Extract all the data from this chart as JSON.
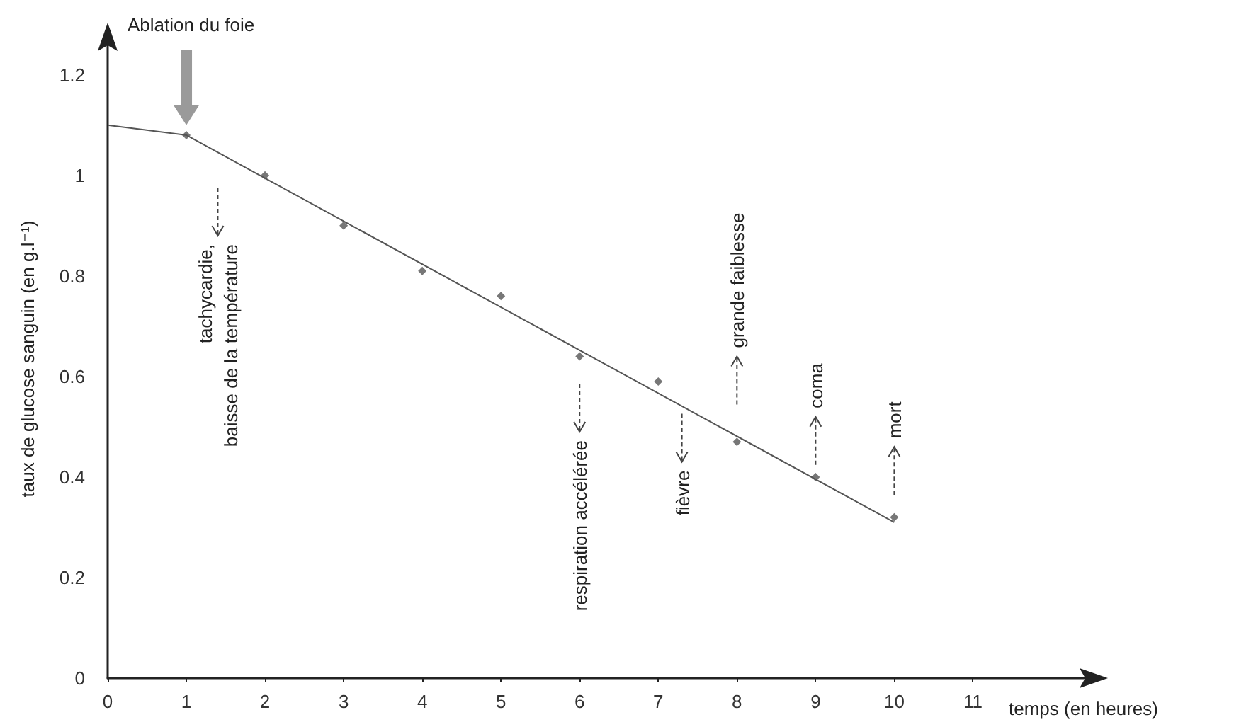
{
  "chart_data": {
    "type": "scatter",
    "xlabel": "temps (en heures)",
    "ylabel": "taux de glucose sanguin (en g.l⁻¹)",
    "series": [
      {
        "color": "#555555",
        "marker": "diamond",
        "x": [
          1,
          2,
          3,
          4,
          5,
          6,
          7,
          8,
          9,
          10
        ],
        "values": [
          1.08,
          1.0,
          0.9,
          0.81,
          0.76,
          0.64,
          0.59,
          0.47,
          0.4,
          0.32
        ]
      },
      {
        "type": "line",
        "color": "#555555",
        "line_style": "solid",
        "marker": "none",
        "x": [
          0,
          1,
          10
        ],
        "values": [
          1.1,
          1.08,
          0.31
        ]
      }
    ],
    "xlim": [
      0,
      12.5
    ],
    "xticks": [
      0,
      1,
      2,
      3,
      4,
      5,
      6,
      7,
      8,
      9,
      10,
      11
    ],
    "ylim": [
      0,
      1.27
    ],
    "yticks": [
      0,
      0.2,
      0.4,
      0.6,
      0.8,
      1,
      1.2
    ],
    "grid": false,
    "annotations": [
      "Ablation du foie",
      "tachycardie,\nbaisse de la température",
      "respiration accélérée",
      "fièvre",
      "grande faiblesse",
      "coma",
      "mort"
    ]
  }
}
